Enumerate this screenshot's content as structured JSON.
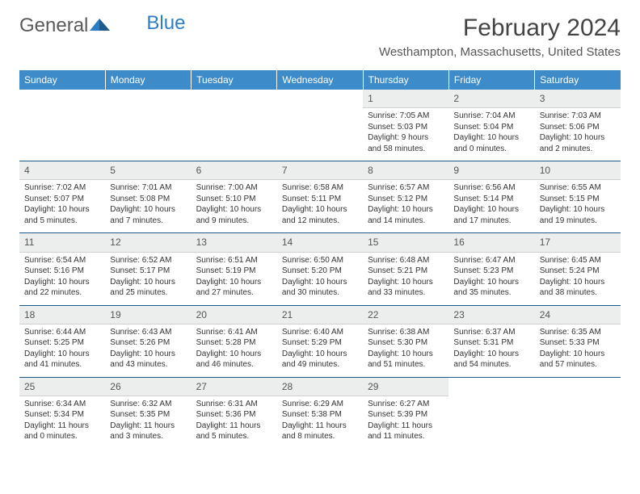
{
  "logo": {
    "part1": "General",
    "part2": "Blue"
  },
  "title": "February 2024",
  "location": "Westhampton, Massachusetts, United States",
  "colors": {
    "header_bg": "#3d8bc9",
    "header_text": "#ffffff",
    "daynum_bg": "#eceded",
    "row_border": "#1f5a8a",
    "text": "#333333",
    "logo_gray": "#5a5a5a",
    "logo_blue": "#2d7dc4"
  },
  "weekdays": [
    "Sunday",
    "Monday",
    "Tuesday",
    "Wednesday",
    "Thursday",
    "Friday",
    "Saturday"
  ],
  "weeks": [
    [
      null,
      null,
      null,
      null,
      {
        "n": "1",
        "sunrise": "Sunrise: 7:05 AM",
        "sunset": "Sunset: 5:03 PM",
        "daylight": "Daylight: 9 hours and 58 minutes."
      },
      {
        "n": "2",
        "sunrise": "Sunrise: 7:04 AM",
        "sunset": "Sunset: 5:04 PM",
        "daylight": "Daylight: 10 hours and 0 minutes."
      },
      {
        "n": "3",
        "sunrise": "Sunrise: 7:03 AM",
        "sunset": "Sunset: 5:06 PM",
        "daylight": "Daylight: 10 hours and 2 minutes."
      }
    ],
    [
      {
        "n": "4",
        "sunrise": "Sunrise: 7:02 AM",
        "sunset": "Sunset: 5:07 PM",
        "daylight": "Daylight: 10 hours and 5 minutes."
      },
      {
        "n": "5",
        "sunrise": "Sunrise: 7:01 AM",
        "sunset": "Sunset: 5:08 PM",
        "daylight": "Daylight: 10 hours and 7 minutes."
      },
      {
        "n": "6",
        "sunrise": "Sunrise: 7:00 AM",
        "sunset": "Sunset: 5:10 PM",
        "daylight": "Daylight: 10 hours and 9 minutes."
      },
      {
        "n": "7",
        "sunrise": "Sunrise: 6:58 AM",
        "sunset": "Sunset: 5:11 PM",
        "daylight": "Daylight: 10 hours and 12 minutes."
      },
      {
        "n": "8",
        "sunrise": "Sunrise: 6:57 AM",
        "sunset": "Sunset: 5:12 PM",
        "daylight": "Daylight: 10 hours and 14 minutes."
      },
      {
        "n": "9",
        "sunrise": "Sunrise: 6:56 AM",
        "sunset": "Sunset: 5:14 PM",
        "daylight": "Daylight: 10 hours and 17 minutes."
      },
      {
        "n": "10",
        "sunrise": "Sunrise: 6:55 AM",
        "sunset": "Sunset: 5:15 PM",
        "daylight": "Daylight: 10 hours and 19 minutes."
      }
    ],
    [
      {
        "n": "11",
        "sunrise": "Sunrise: 6:54 AM",
        "sunset": "Sunset: 5:16 PM",
        "daylight": "Daylight: 10 hours and 22 minutes."
      },
      {
        "n": "12",
        "sunrise": "Sunrise: 6:52 AM",
        "sunset": "Sunset: 5:17 PM",
        "daylight": "Daylight: 10 hours and 25 minutes."
      },
      {
        "n": "13",
        "sunrise": "Sunrise: 6:51 AM",
        "sunset": "Sunset: 5:19 PM",
        "daylight": "Daylight: 10 hours and 27 minutes."
      },
      {
        "n": "14",
        "sunrise": "Sunrise: 6:50 AM",
        "sunset": "Sunset: 5:20 PM",
        "daylight": "Daylight: 10 hours and 30 minutes."
      },
      {
        "n": "15",
        "sunrise": "Sunrise: 6:48 AM",
        "sunset": "Sunset: 5:21 PM",
        "daylight": "Daylight: 10 hours and 33 minutes."
      },
      {
        "n": "16",
        "sunrise": "Sunrise: 6:47 AM",
        "sunset": "Sunset: 5:23 PM",
        "daylight": "Daylight: 10 hours and 35 minutes."
      },
      {
        "n": "17",
        "sunrise": "Sunrise: 6:45 AM",
        "sunset": "Sunset: 5:24 PM",
        "daylight": "Daylight: 10 hours and 38 minutes."
      }
    ],
    [
      {
        "n": "18",
        "sunrise": "Sunrise: 6:44 AM",
        "sunset": "Sunset: 5:25 PM",
        "daylight": "Daylight: 10 hours and 41 minutes."
      },
      {
        "n": "19",
        "sunrise": "Sunrise: 6:43 AM",
        "sunset": "Sunset: 5:26 PM",
        "daylight": "Daylight: 10 hours and 43 minutes."
      },
      {
        "n": "20",
        "sunrise": "Sunrise: 6:41 AM",
        "sunset": "Sunset: 5:28 PM",
        "daylight": "Daylight: 10 hours and 46 minutes."
      },
      {
        "n": "21",
        "sunrise": "Sunrise: 6:40 AM",
        "sunset": "Sunset: 5:29 PM",
        "daylight": "Daylight: 10 hours and 49 minutes."
      },
      {
        "n": "22",
        "sunrise": "Sunrise: 6:38 AM",
        "sunset": "Sunset: 5:30 PM",
        "daylight": "Daylight: 10 hours and 51 minutes."
      },
      {
        "n": "23",
        "sunrise": "Sunrise: 6:37 AM",
        "sunset": "Sunset: 5:31 PM",
        "daylight": "Daylight: 10 hours and 54 minutes."
      },
      {
        "n": "24",
        "sunrise": "Sunrise: 6:35 AM",
        "sunset": "Sunset: 5:33 PM",
        "daylight": "Daylight: 10 hours and 57 minutes."
      }
    ],
    [
      {
        "n": "25",
        "sunrise": "Sunrise: 6:34 AM",
        "sunset": "Sunset: 5:34 PM",
        "daylight": "Daylight: 11 hours and 0 minutes."
      },
      {
        "n": "26",
        "sunrise": "Sunrise: 6:32 AM",
        "sunset": "Sunset: 5:35 PM",
        "daylight": "Daylight: 11 hours and 3 minutes."
      },
      {
        "n": "27",
        "sunrise": "Sunrise: 6:31 AM",
        "sunset": "Sunset: 5:36 PM",
        "daylight": "Daylight: 11 hours and 5 minutes."
      },
      {
        "n": "28",
        "sunrise": "Sunrise: 6:29 AM",
        "sunset": "Sunset: 5:38 PM",
        "daylight": "Daylight: 11 hours and 8 minutes."
      },
      {
        "n": "29",
        "sunrise": "Sunrise: 6:27 AM",
        "sunset": "Sunset: 5:39 PM",
        "daylight": "Daylight: 11 hours and 11 minutes."
      },
      null,
      null
    ]
  ]
}
